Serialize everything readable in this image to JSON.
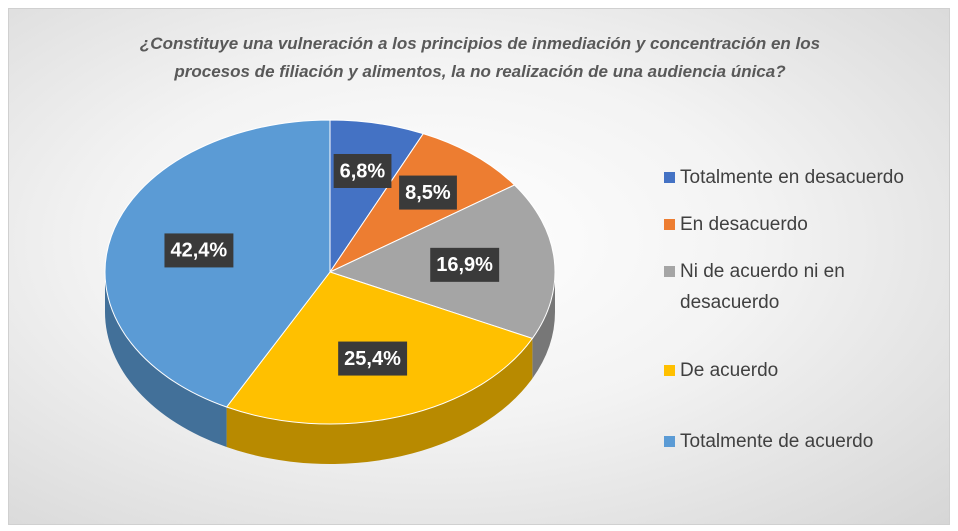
{
  "chart_data": {
    "type": "pie",
    "title": "¿Constituye una vulneración a los principios de inmediación y concentración en los procesos de filiación y alimentos, la no realización de una audiencia única?",
    "categories": [
      "Totalmente en desacuerdo",
      "En desacuerdo",
      "Ni de acuerdo ni en desacuerdo",
      "De acuerdo",
      "Totalmente de acuerdo"
    ],
    "values": [
      6.8,
      8.5,
      16.9,
      25.4,
      42.4
    ],
    "value_labels": [
      "6,8%",
      "8,5%",
      "16,9%",
      "25,4%",
      "42,4%"
    ],
    "colors": [
      "#4472c4",
      "#ed7d31",
      "#a5a5a5",
      "#ffc000",
      "#5b9bd5"
    ],
    "legend": "right"
  }
}
